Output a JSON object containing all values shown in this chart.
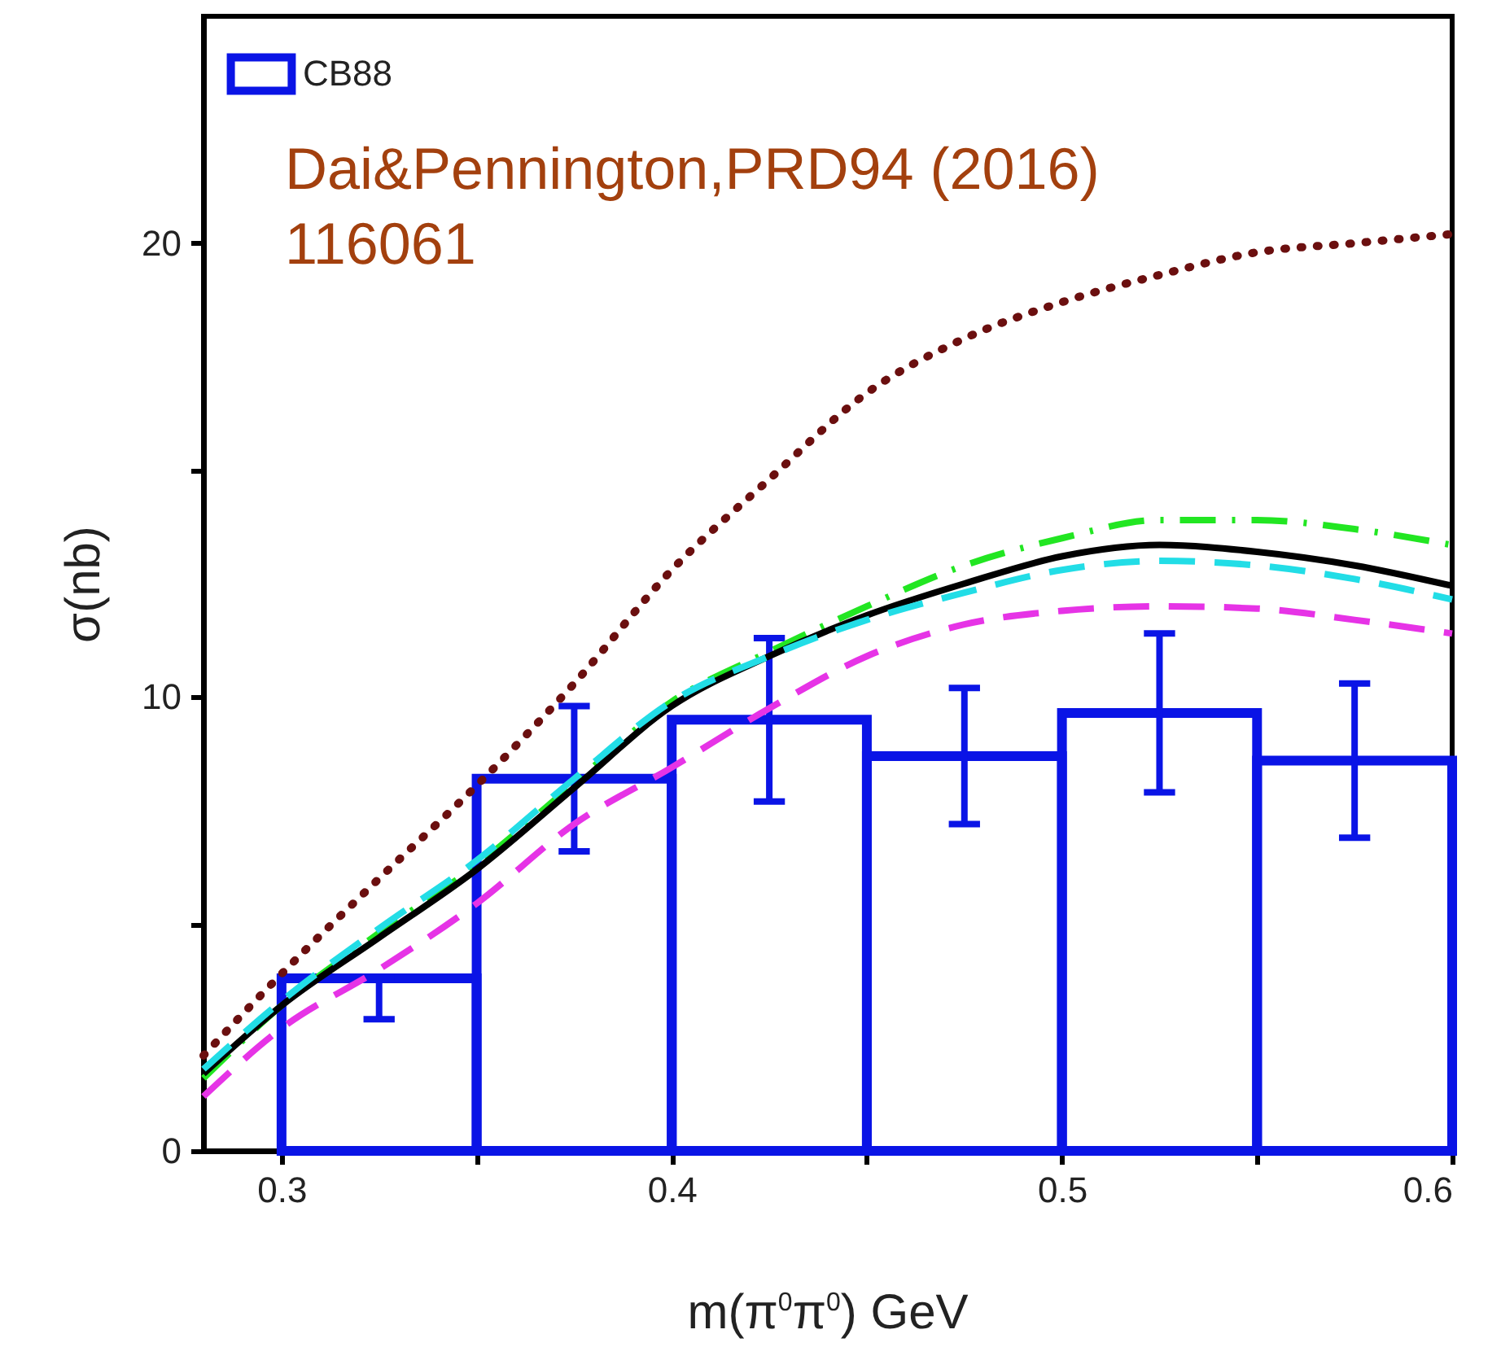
{
  "chart_data": {
    "type": "histogram",
    "xlabel": "m(π$^{0}$π$^{0}$) GeV",
    "ylabel": "σ(nb)",
    "annotations": [
      "Dai&Pennington,PRD94 (2016) 116061"
    ],
    "bins": [
      0.3,
      0.35,
      0.4,
      0.45,
      0.5,
      0.55,
      0.6
    ],
    "xlim": [
      0.28,
      0.6
    ],
    "ylim": [
      0,
      25
    ],
    "xticks": [
      0.3,
      {
        "value": 0.35,
        "label": null
      },
      0.4,
      {
        "value": 0.45,
        "label": null
      },
      0.5,
      {
        "value": 0.55,
        "label": null
      },
      0.6
    ],
    "yticks": [
      0,
      {
        "value": 5,
        "label": null
      },
      10,
      {
        "value": 15,
        "label": null
      },
      20
    ],
    "grid": false,
    "legend": "top left",
    "marker": "none",
    "series": [
      {
        "name": "CB88",
        "color": "#0a14e6",
        "values": [
          3.8,
          8.2,
          9.5,
          8.7,
          9.65,
          8.6
        ],
        "errors": [
          [
            2.9,
            3.8
          ],
          [
            6.6,
            9.8
          ],
          [
            7.7,
            11.3
          ],
          [
            7.2,
            10.2
          ],
          [
            7.9,
            11.4
          ],
          [
            6.9,
            10.3
          ]
        ]
      },
      {
        "type": "line",
        "color": "#6b0f0f",
        "line_style": "dotted",
        "x": [
          0.28,
          0.3,
          0.325,
          0.35,
          0.375,
          0.4,
          0.425,
          0.45,
          0.475,
          0.5,
          0.525,
          0.55,
          0.575,
          0.6
        ],
        "values": [
          2.1,
          3.9,
          6.0,
          8.05,
          10.3,
          12.8,
          14.8,
          16.7,
          17.9,
          18.7,
          19.3,
          19.8,
          20.0,
          20.2
        ]
      },
      {
        "type": "line",
        "color": "#22e622",
        "line_style": "dashdot",
        "x": [
          0.28,
          0.3,
          0.325,
          0.35,
          0.375,
          0.4,
          0.425,
          0.45,
          0.475,
          0.5,
          0.525,
          0.55,
          0.575,
          0.6
        ],
        "values": [
          1.6,
          3.2,
          4.8,
          6.3,
          8.1,
          9.9,
          11.0,
          12.0,
          12.9,
          13.5,
          13.9,
          13.9,
          13.7,
          13.35
        ]
      },
      {
        "type": "line",
        "color": "#000000",
        "line_style": "solid",
        "x": [
          0.28,
          0.3,
          0.325,
          0.35,
          0.375,
          0.4,
          0.425,
          0.45,
          0.475,
          0.5,
          0.525,
          0.55,
          0.575,
          0.6
        ],
        "values": [
          1.7,
          3.2,
          4.7,
          6.2,
          8.0,
          9.8,
          10.9,
          11.8,
          12.5,
          13.1,
          13.35,
          13.2,
          12.9,
          12.45
        ]
      },
      {
        "type": "line",
        "color": "#22dde6",
        "line_style": "dashed",
        "x": [
          0.28,
          0.3,
          0.325,
          0.35,
          0.375,
          0.4,
          0.425,
          0.45,
          0.475,
          0.5,
          0.525,
          0.55,
          0.575,
          0.6
        ],
        "values": [
          1.8,
          3.3,
          4.9,
          6.4,
          8.2,
          9.9,
          10.9,
          11.7,
          12.3,
          12.8,
          13.0,
          12.9,
          12.6,
          12.15
        ]
      },
      {
        "type": "line",
        "color": "#e633e6",
        "line_style": "dashed",
        "x": [
          0.28,
          0.3,
          0.325,
          0.35,
          0.375,
          0.4,
          0.425,
          0.45,
          0.475,
          0.5,
          0.525,
          0.55,
          0.575,
          0.6
        ],
        "values": [
          1.2,
          2.7,
          4.0,
          5.45,
          7.2,
          8.45,
          9.75,
          10.9,
          11.6,
          11.9,
          12.0,
          11.95,
          11.7,
          11.4
        ]
      }
    ]
  }
}
